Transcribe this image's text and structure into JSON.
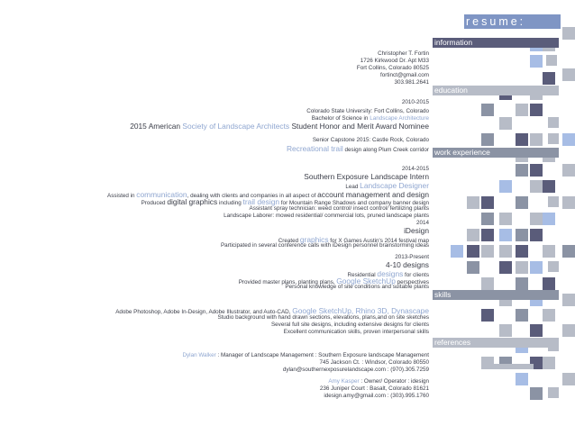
{
  "header": {
    "title": "resume:"
  },
  "colors": {
    "dark": "#5a5c7a",
    "mid": "#8b93a4",
    "light": "#b7bcc7",
    "blue": "#a7bde5",
    "accent": "#8fa6d0"
  },
  "sections": {
    "information": "information",
    "education": "education",
    "work": "work experience",
    "skills": "skills",
    "references": "references"
  },
  "info": {
    "name": "Christopher T. Fortin",
    "address1": "1726 Kirkwood Dr. Apt M33",
    "address2": "Fort Collins, Colorado 80525",
    "email": "fortinct@gmail.com",
    "phone": "303.981.2641"
  },
  "education": {
    "years": "2010-2015",
    "school": "Colorado State University: Fort Collins, Colorado",
    "degree_prefix": "Bachelor of Science in ",
    "degree_hl": "Landscape Architecture",
    "award_prefix": "2015 American ",
    "award_hl": "Society of Landscape Architects",
    "award_suffix": " Student Honor and Merit Award Nominee",
    "capstone": "Senior Capstone 2015: Castle Rock, Colorado",
    "trail_hl": "Recreational trail",
    "trail_suffix": " design along Plum Creek corridor"
  },
  "work": {
    "j1_years": "2014-2015",
    "j1_title": "Southern Exposure Landscape Intern",
    "j1_lead_prefix": "Lead ",
    "j1_lead_hl": "Landscape Designer",
    "j1_l1_a": "Assisted in ",
    "j1_l1_hl": "communication",
    "j1_l1_b": ", dealing with clients and companies in all aspect of ",
    "j1_l1_c": "account management and design",
    "j1_l2_a": "Produced ",
    "j1_l2_b": "digital graphics",
    "j1_l2_c": " including ",
    "j1_l2_hl": "trail design",
    "j1_l2_d": " for Mountain Range Shadows and  company banner design",
    "j1_l3": "Assistant spray technician: weed control/ insect control/ fertilizing plants",
    "j1_l4": "Landscape Laborer: mowed residential/ commercial lots, pruned landscape plants",
    "j2_years": "2014",
    "j2_title": "iDesign",
    "j2_l1_a": "Created ",
    "j2_l1_hl": "graphics",
    "j2_l1_b": " for  X Games Austin's 2014 festival map",
    "j2_l2": "Participated in several conference calls with iDesign personnel brainstorming ideas",
    "j3_years": "2013-Present",
    "j3_title": "4-10 designs",
    "j3_l1_a": "Residential ",
    "j3_l1_hl": "designs",
    "j3_l1_b": " for clients",
    "j3_l2_a": "Provided master plans, planting plans, ",
    "j3_l2_hl": "Google SketchUp",
    "j3_l2_b": " perspectives",
    "j3_l3": "Personal knowledge of site conditions and suitable plants"
  },
  "skills": {
    "l1_a": "Adobe Photoshop, Adobe In-Design, Adobe Illustrator, and Auto-CAD, ",
    "l1_hl": "Google SketchUp, Rhino 3D, Dynascape",
    "l2": "Studio background with hand drawn sections, elevations, plans,and on site sketches",
    "l3": "Several full site designs, including extensive designs for clients",
    "l4": "Excellent communication skills, proven interpersonal skills"
  },
  "references": {
    "r1_name": "Dylan Walker",
    "r1_role": " : Manager of Landscape Management : Southern Exposure landscape Management",
    "r1_addr": "745 Jackson Ct. : Windsor, Colorado 80550",
    "r1_contact": "dylan@southernexposurelandscape.com : (970).305.7259",
    "r2_name": "Amy Kasper",
    "r2_role": " : Owner/ Operator : idesign",
    "r2_addr": "236 Juniper Court : Basalt, Colorado 81621",
    "r2_contact": "idesign.amy@gmail.com : (303).995.1760"
  }
}
